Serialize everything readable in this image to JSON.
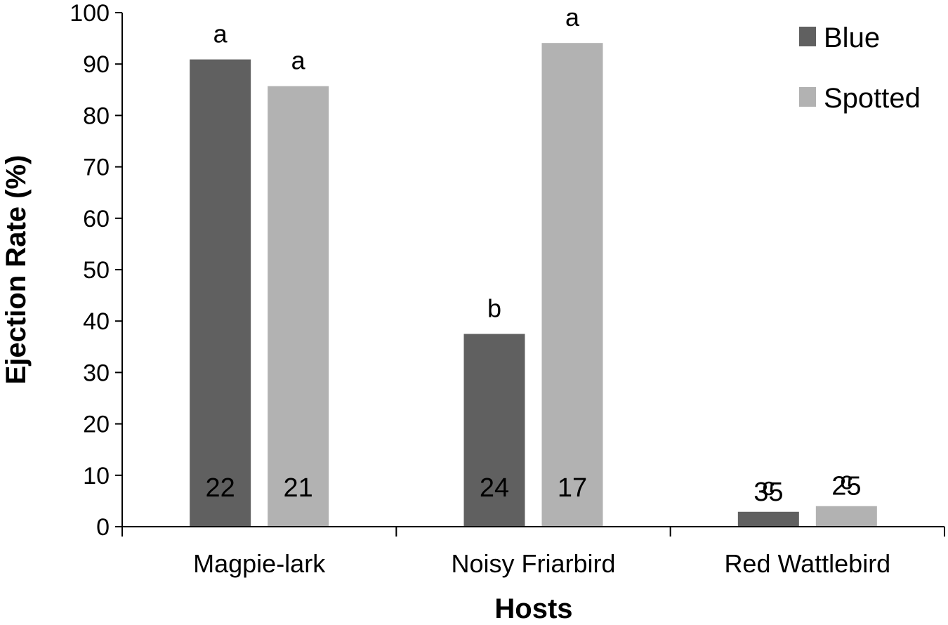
{
  "chart_data": {
    "type": "bar",
    "xlabel": "Hosts",
    "ylabel": "Ejection Rate (%)",
    "ylim": [
      0,
      100
    ],
    "yticks": [
      0,
      10,
      20,
      30,
      40,
      50,
      60,
      70,
      80,
      90,
      100
    ],
    "categories": [
      "Magpie-lark",
      "Noisy Friarbird",
      "Red Wattlebird"
    ],
    "series": [
      {
        "name": "Blue",
        "color": "#606060",
        "values": [
          90.9,
          37.5,
          2.9
        ],
        "sample_sizes": [
          "22",
          "24",
          "35"
        ],
        "significance": [
          "a",
          "b",
          "c"
        ]
      },
      {
        "name": "Spotted",
        "color": "#b2b2b2",
        "values": [
          85.7,
          94.1,
          4.0
        ],
        "sample_sizes": [
          "21",
          "17",
          "25"
        ],
        "significance": [
          "a",
          "a",
          "c"
        ]
      }
    ],
    "grid": false,
    "legend": "top-right"
  }
}
